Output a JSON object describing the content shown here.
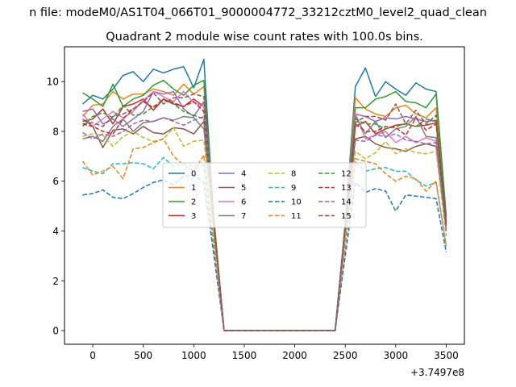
{
  "header_text": "n file: modeM0/AS1T04_066T01_9000004772_33212cztM0_level2_quad_clean",
  "chart_data": {
    "type": "line",
    "title": "Quadrant 2 module wise count rates with 100.0s bins.",
    "xlabel": "",
    "ylabel": "",
    "x_offset_label": "+3.7497e8",
    "xlim": [
      -280,
      3680
    ],
    "ylim": [
      -0.55,
      11.4
    ],
    "xticks": [
      0,
      500,
      1000,
      1500,
      2000,
      2500,
      3000,
      3500
    ],
    "yticks": [
      0,
      2,
      4,
      6,
      8,
      10
    ],
    "legend_position": "center",
    "x": [
      -100,
      0,
      100,
      200,
      300,
      400,
      500,
      600,
      700,
      800,
      900,
      1000,
      1100,
      1200,
      1300,
      1400,
      1500,
      1600,
      1700,
      1800,
      1900,
      2000,
      2100,
      2200,
      2300,
      2400,
      2500,
      2600,
      2700,
      2800,
      2900,
      3000,
      3100,
      3200,
      3300,
      3400,
      3500
    ],
    "series": [
      {
        "name": "0",
        "color": "#1f77b4",
        "dash": "solid",
        "values": [
          9.1,
          9.45,
          9.3,
          9.7,
          10.25,
          10.4,
          10.0,
          10.5,
          10.35,
          10.5,
          10.6,
          9.75,
          10.9,
          4.3,
          0,
          0,
          0,
          0,
          0,
          0,
          0,
          0,
          0,
          0,
          0,
          0,
          4.3,
          9.8,
          10.55,
          9.4,
          10.0,
          9.7,
          9.45,
          9.95,
          9.7,
          9.6,
          4.6
        ]
      },
      {
        "name": "1",
        "color": "#ff7f0e",
        "dash": "solid",
        "values": [
          8.6,
          9.05,
          9.1,
          9.6,
          9.3,
          9.5,
          9.5,
          9.7,
          9.6,
          9.45,
          9.9,
          9.5,
          9.8,
          4.5,
          0,
          0,
          0,
          0,
          0,
          0,
          0,
          0,
          0,
          0,
          0,
          0,
          4.2,
          9.35,
          8.9,
          8.7,
          8.6,
          8.95,
          9.05,
          8.7,
          8.55,
          8.95,
          4.5
        ]
      },
      {
        "name": "2",
        "color": "#2ca02c",
        "dash": "solid",
        "values": [
          9.55,
          9.3,
          9.0,
          9.9,
          9.0,
          9.3,
          9.45,
          9.85,
          10.05,
          9.7,
          9.45,
          9.85,
          10.05,
          4.5,
          0,
          0,
          0,
          0,
          0,
          0,
          0,
          0,
          0,
          0,
          0,
          0,
          4.3,
          8.95,
          8.95,
          9.3,
          9.4,
          9.6,
          9.2,
          9.15,
          8.95,
          9.5,
          4.6
        ]
      },
      {
        "name": "3",
        "color": "#d62728",
        "dash": "solid",
        "values": [
          8.4,
          8.5,
          8.9,
          8.3,
          9.0,
          9.1,
          9.3,
          8.85,
          9.3,
          9.1,
          9.0,
          9.3,
          9.0,
          4.3,
          0,
          0,
          0,
          0,
          0,
          0,
          0,
          0,
          0,
          0,
          0,
          0,
          4.2,
          8.2,
          8.4,
          7.9,
          8.1,
          8.25,
          8.3,
          8.2,
          8.25,
          8.35,
          4.3
        ]
      },
      {
        "name": "4",
        "color": "#9467bd",
        "dash": "solid",
        "values": [
          8.8,
          8.9,
          8.3,
          8.5,
          8.2,
          8.5,
          8.8,
          9.6,
          9.5,
          9.6,
          8.9,
          8.6,
          9.2,
          4.2,
          0,
          0,
          0,
          0,
          0,
          0,
          0,
          0,
          0,
          0,
          0,
          0,
          4.1,
          8.7,
          8.6,
          8.4,
          8.55,
          8.5,
          8.6,
          8.5,
          8.4,
          8.45,
          4.4
        ]
      },
      {
        "name": "5",
        "color": "#8c564b",
        "dash": "solid",
        "values": [
          8.5,
          8.2,
          7.35,
          8.05,
          8.1,
          7.9,
          8.2,
          7.95,
          7.9,
          8.15,
          8.1,
          7.9,
          8.4,
          4.0,
          0,
          0,
          0,
          0,
          0,
          0,
          0,
          0,
          0,
          0,
          0,
          0,
          4.0,
          7.7,
          7.8,
          7.5,
          7.35,
          7.3,
          7.2,
          7.4,
          7.5,
          7.4,
          4.0
        ]
      },
      {
        "name": "6",
        "color": "#e377c2",
        "dash": "solid",
        "values": [
          8.7,
          8.2,
          8.5,
          8.8,
          8.55,
          8.8,
          9.25,
          9.6,
          9.4,
          9.2,
          9.6,
          9.15,
          9.0,
          4.2,
          0,
          0,
          0,
          0,
          0,
          0,
          0,
          0,
          0,
          0,
          0,
          0,
          4.1,
          8.75,
          7.7,
          7.85,
          8.0,
          7.55,
          7.8,
          7.55,
          7.75,
          7.6,
          4.0
        ]
      },
      {
        "name": "7",
        "color": "#7f7f7f",
        "dash": "solid",
        "values": [
          7.7,
          7.8,
          7.6,
          8.2,
          8.5,
          8.0,
          8.35,
          8.4,
          8.55,
          8.45,
          8.6,
          8.55,
          8.1,
          4.1,
          0,
          0,
          0,
          0,
          0,
          0,
          0,
          0,
          0,
          0,
          0,
          0,
          4.0,
          8.6,
          7.9,
          8.4,
          7.75,
          8.1,
          8.2,
          8.6,
          7.8,
          7.75,
          4.1
        ]
      },
      {
        "name": "8",
        "color": "#bcbd22",
        "dash": "dashed",
        "values": [
          7.8,
          7.9,
          7.85,
          7.4,
          7.8,
          8.0,
          7.75,
          7.6,
          7.7,
          8.15,
          7.4,
          7.6,
          7.65,
          3.9,
          0,
          0,
          0,
          0,
          0,
          0,
          0,
          0,
          0,
          0,
          0,
          0,
          3.8,
          7.2,
          6.9,
          7.15,
          7.6,
          7.1,
          7.3,
          7.15,
          7.1,
          7.2,
          3.8
        ]
      },
      {
        "name": "9",
        "color": "#17becf",
        "dash": "dashed",
        "values": [
          6.55,
          6.4,
          6.3,
          6.7,
          6.7,
          6.75,
          6.7,
          6.5,
          6.95,
          6.6,
          6.7,
          6.6,
          6.65,
          3.3,
          0,
          0,
          0,
          0,
          0,
          0,
          0,
          0,
          0,
          0,
          0,
          0,
          3.3,
          6.8,
          6.4,
          6.5,
          6.55,
          6.4,
          6.4,
          6.05,
          5.8,
          5.95,
          3.4
        ]
      },
      {
        "name": "10",
        "color": "#1f77b4",
        "dash": "dashed",
        "values": [
          5.45,
          5.5,
          5.65,
          5.35,
          5.3,
          5.5,
          5.75,
          5.95,
          6.05,
          5.85,
          6.2,
          6.25,
          5.95,
          3.0,
          0,
          0,
          0,
          0,
          0,
          0,
          0,
          0,
          0,
          0,
          0,
          0,
          3.0,
          5.95,
          5.55,
          5.7,
          5.6,
          4.8,
          5.45,
          5.4,
          5.35,
          5.3,
          3.15
        ]
      },
      {
        "name": "11",
        "color": "#ff7f0e",
        "dash": "dashed",
        "values": [
          6.8,
          6.25,
          6.4,
          6.6,
          6.1,
          7.3,
          7.35,
          7.55,
          7.7,
          7.0,
          6.65,
          6.4,
          7.05,
          3.5,
          0,
          0,
          0,
          0,
          0,
          0,
          0,
          0,
          0,
          0,
          0,
          0,
          3.5,
          6.9,
          6.8,
          6.7,
          6.3,
          6.0,
          6.2,
          6.1,
          5.6,
          6.0,
          3.4
        ]
      },
      {
        "name": "12",
        "color": "#2ca02c",
        "dash": "dashed",
        "values": [
          8.2,
          8.6,
          8.75,
          8.55,
          9.05,
          8.65,
          8.7,
          9.0,
          9.25,
          9.1,
          8.8,
          8.65,
          8.5,
          4.3,
          0,
          0,
          0,
          0,
          0,
          0,
          0,
          0,
          0,
          0,
          0,
          0,
          4.2,
          8.5,
          8.3,
          8.3,
          8.1,
          8.2,
          8.3,
          8.2,
          8.5,
          8.4,
          4.3
        ]
      },
      {
        "name": "13",
        "color": "#d62728",
        "dash": "dashed",
        "values": [
          8.3,
          8.2,
          8.0,
          7.9,
          8.5,
          8.9,
          9.2,
          8.95,
          9.3,
          9.15,
          9.0,
          9.2,
          8.8,
          4.2,
          0,
          0,
          0,
          0,
          0,
          0,
          0,
          0,
          0,
          0,
          0,
          0,
          4.1,
          8.3,
          8.0,
          8.0,
          8.2,
          8.15,
          7.85,
          8.55,
          8.05,
          8.3,
          4.2
        ]
      },
      {
        "name": "14",
        "color": "#9467bd",
        "dash": "dashed",
        "values": [
          7.95,
          7.7,
          7.9,
          7.8,
          8.0,
          8.3,
          8.45,
          8.4,
          8.55,
          8.4,
          8.25,
          8.45,
          8.6,
          4.1,
          0,
          0,
          0,
          0,
          0,
          0,
          0,
          0,
          0,
          0,
          0,
          0,
          4.0,
          7.65,
          7.6,
          7.85,
          7.8,
          7.9,
          7.65,
          7.6,
          7.5,
          7.55,
          4.0
        ]
      },
      {
        "name": "15",
        "color": "#8c564b",
        "dash": "dashed",
        "values": [
          8.3,
          8.35,
          8.2,
          8.6,
          8.7,
          8.9,
          9.2,
          9.55,
          9.1,
          9.35,
          9.35,
          9.5,
          9.4,
          4.3,
          0,
          0,
          0,
          0,
          0,
          0,
          0,
          0,
          0,
          0,
          0,
          0,
          4.2,
          8.35,
          8.6,
          8.6,
          8.45,
          9.1,
          8.3,
          8.85,
          8.3,
          8.65,
          4.3
        ]
      }
    ]
  }
}
